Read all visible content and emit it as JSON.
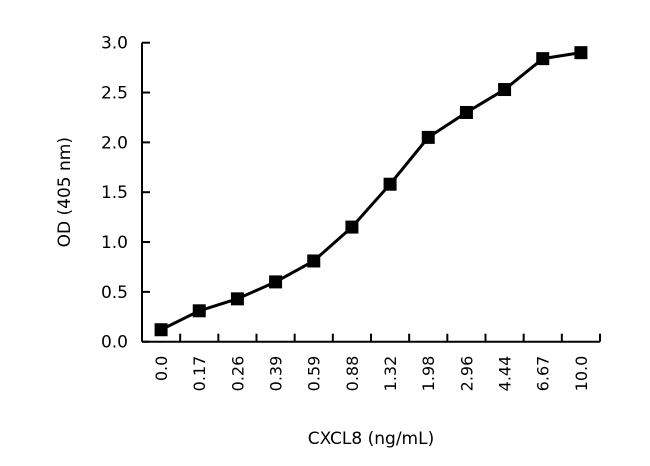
{
  "chart_data": {
    "type": "line",
    "title": "",
    "xlabel": "CXCL8 (ng/mL)",
    "ylabel": "OD (405 nm)",
    "categories": [
      "0.0",
      "0.17",
      "0.26",
      "0.39",
      "0.59",
      "0.88",
      "1.32",
      "1.98",
      "2.96",
      "4.44",
      "6.67",
      "10.0"
    ],
    "series": [
      {
        "values": [
          0.12,
          0.31,
          0.43,
          0.6,
          0.81,
          1.15,
          1.58,
          2.05,
          2.3,
          2.53,
          2.84,
          2.9
        ],
        "marker": "square",
        "color": "#000000"
      }
    ],
    "ylim": [
      0,
      3.0
    ],
    "yticks": [
      "0.0",
      "0.5",
      "1.0",
      "1.5",
      "2.0",
      "2.5",
      "3.0"
    ],
    "grid": false,
    "legend": "none"
  }
}
